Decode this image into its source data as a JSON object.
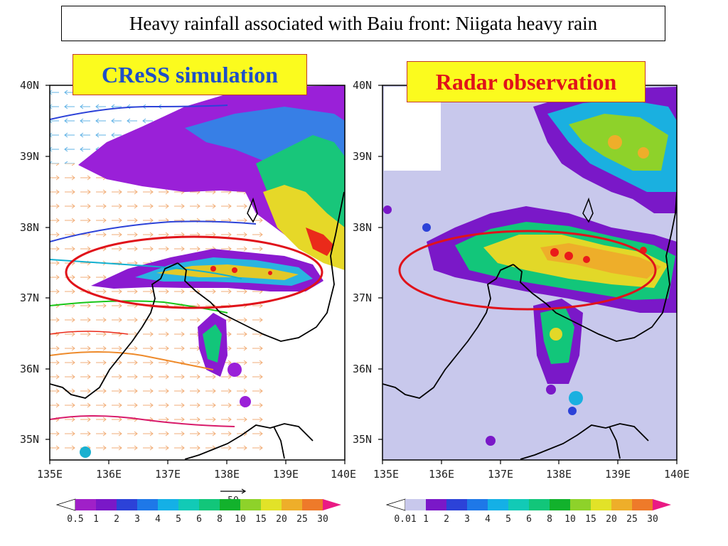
{
  "title": "Heavy rainfall associated with Baiu front: Niigata heavy rain",
  "panels": {
    "left": {
      "label": "CReSS simulation",
      "background": "#ffffff"
    },
    "right": {
      "label": "Radar observation",
      "background": "#c8c8ec"
    }
  },
  "lat_ticks": [
    "40N",
    "39N",
    "38N",
    "37N",
    "36N",
    "35N"
  ],
  "lon_ticks": [
    "135E",
    "136E",
    "137E",
    "138E",
    "139E",
    "140E"
  ],
  "vector_reference": "50",
  "colorbar_left": {
    "ticks": [
      "0.5",
      "1",
      "2",
      "3",
      "4",
      "5",
      "6",
      "8",
      "10",
      "15",
      "20",
      "25",
      "30"
    ],
    "colors": [
      "#a020c8",
      "#7a18c8",
      "#2c42d8",
      "#1e78e8",
      "#14b0e6",
      "#12cab6",
      "#12c67a",
      "#12b22c",
      "#8ed22a",
      "#e2e228",
      "#eeae2a",
      "#ee7a2a",
      "#ea1a1a",
      "#ea1a84"
    ]
  },
  "colorbar_right": {
    "ticks": [
      "0.01",
      "1",
      "2",
      "3",
      "4",
      "5",
      "6",
      "8",
      "10",
      "15",
      "20",
      "25",
      "30"
    ],
    "colors": [
      "#c8c8ec",
      "#7a18c8",
      "#2c42d8",
      "#1e78e8",
      "#14b0e6",
      "#12cab6",
      "#12c67a",
      "#12b22c",
      "#8ed22a",
      "#e2e228",
      "#eeae2a",
      "#ee7a2a",
      "#ea1a1a",
      "#ea1a84"
    ]
  }
}
